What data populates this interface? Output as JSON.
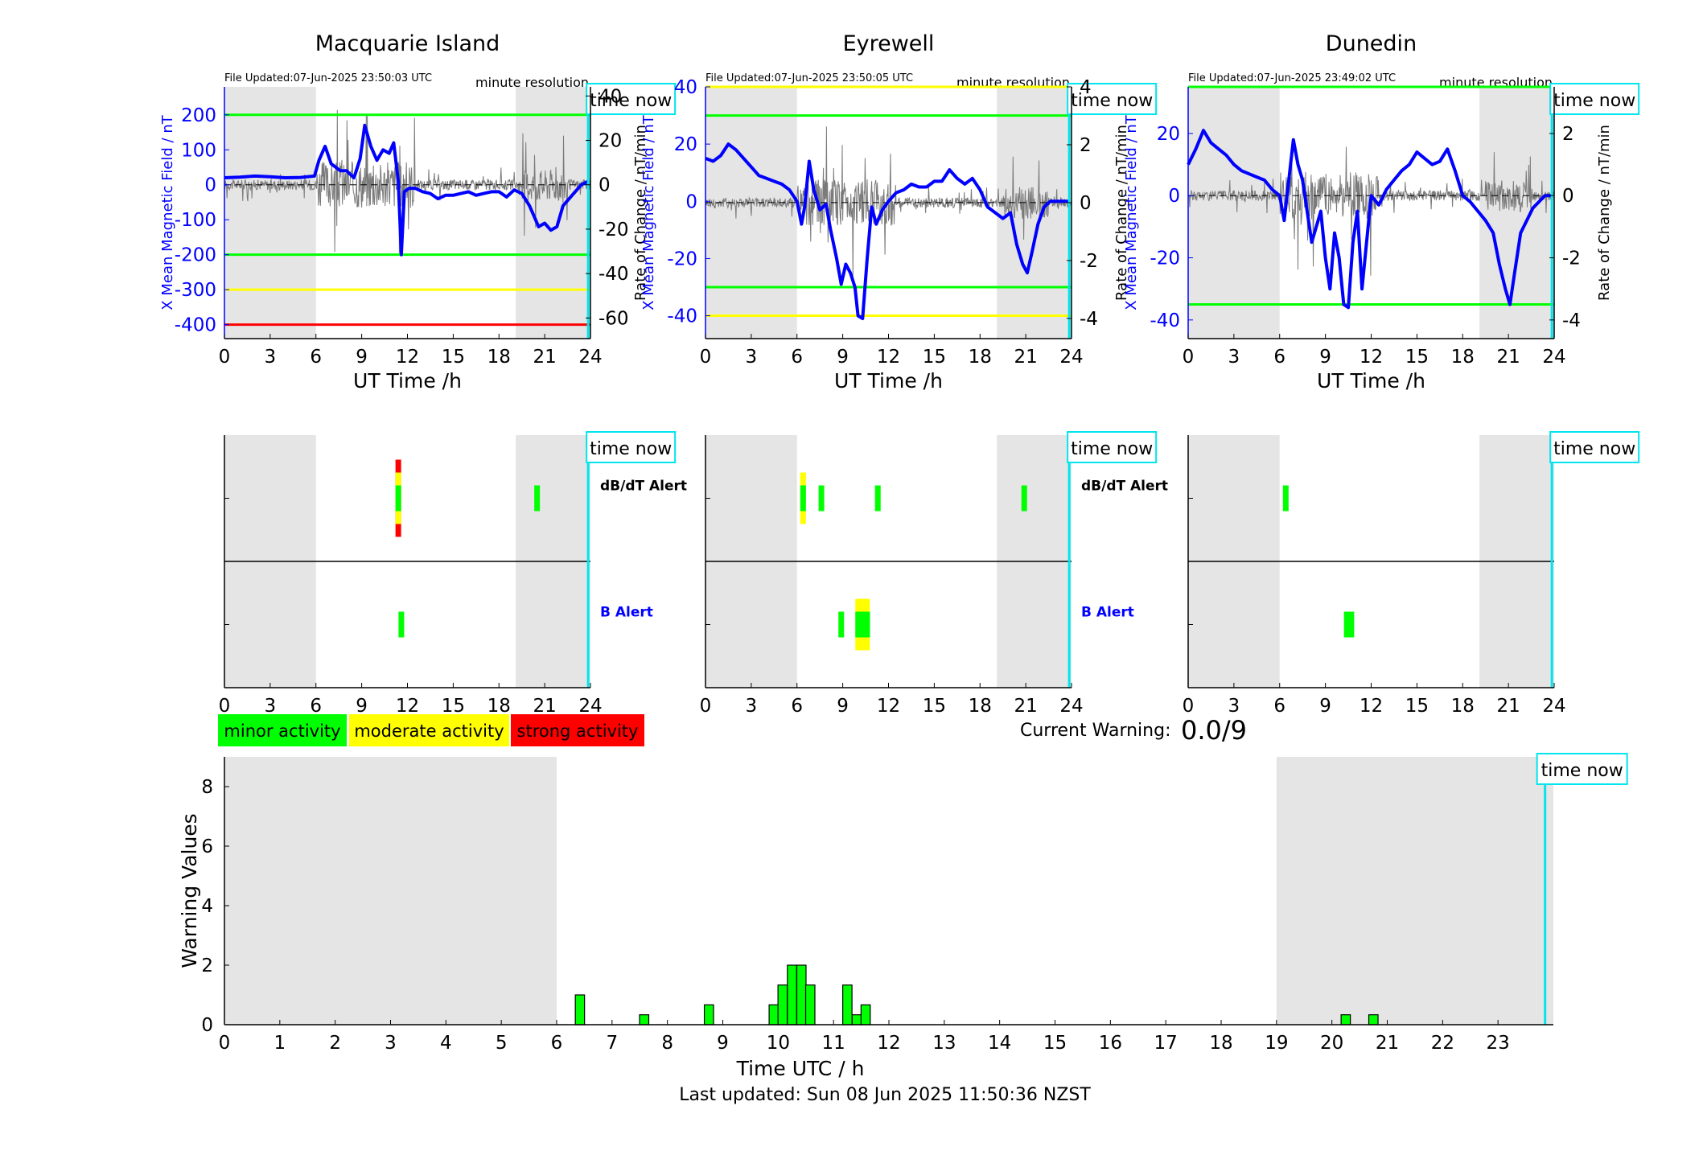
{
  "footer": {
    "last_updated": "Last updated: Sun 08 Jun 2025 11:50:36 NZST"
  },
  "legend": {
    "items": [
      {
        "label": "minor activity",
        "color": "#00ff00"
      },
      {
        "label": "moderate activity",
        "color": "#ffff00"
      },
      {
        "label": "strong activity",
        "color": "#ff0000"
      }
    ]
  },
  "current_warning": {
    "label": "Current Warning:",
    "value": "0.0/9"
  },
  "colors": {
    "field_line": "#0000ff",
    "time_now": "#00e5ee",
    "shade": "#e5e5e5",
    "threshold_green": "#00ff00",
    "threshold_yellow": "#ffff00",
    "threshold_red": "#ff0000"
  },
  "chart_data": [
    {
      "type": "line",
      "title": "Macquarie Island",
      "file_updated": "File Updated:07-Jun-2025 23:50:03 UTC",
      "resolution": "minute resolution",
      "time_now_label": "time now",
      "xlabel": "UT Time /h",
      "ylabel_left": "X Mean Magnetic Field / nT",
      "ylabel_right": "Rate of Change / nT/min",
      "xlim": [
        0,
        24
      ],
      "ylim": [
        -440,
        280
      ],
      "ylim_right": [
        -69.3,
        44.1
      ],
      "xticks": [
        0,
        3,
        6,
        9,
        12,
        15,
        18,
        21,
        24
      ],
      "yticks": [
        -400,
        -300,
        -200,
        -100,
        0,
        100,
        200
      ],
      "yticks_right": [
        -60,
        -40,
        -20,
        0,
        20,
        40
      ],
      "shaded_ranges": [
        [
          0,
          6
        ],
        [
          19.1,
          24
        ]
      ],
      "thresholds": [
        {
          "value": 200,
          "color": "#00ff00"
        },
        {
          "value": -200,
          "color": "#00ff00"
        },
        {
          "value": -300,
          "color": "#ffff00"
        },
        {
          "value": -400,
          "color": "#ff0000"
        }
      ],
      "time_now": 23.85,
      "series": [
        {
          "axis": "left",
          "x": [
            0,
            1,
            2,
            3,
            4,
            5,
            5.9,
            6.2,
            6.6,
            7,
            7.6,
            8,
            8.5,
            8.9,
            9.2,
            9.6,
            10,
            10.4,
            10.8,
            11.1,
            11.4,
            11.6,
            11.8,
            12.1,
            12.5,
            13,
            13.5,
            14,
            14.5,
            15,
            15.5,
            16,
            16.5,
            17,
            17.5,
            18,
            18.5,
            19,
            19.5,
            20,
            20.3,
            20.6,
            21,
            21.4,
            21.8,
            22.2,
            22.6,
            23,
            23.4,
            23.85
          ],
          "y": [
            20,
            22,
            25,
            23,
            20,
            21,
            25,
            70,
            110,
            60,
            40,
            40,
            20,
            75,
            170,
            110,
            70,
            100,
            90,
            120,
            10,
            -200,
            -20,
            -10,
            -10,
            -20,
            -25,
            -40,
            -30,
            -30,
            -25,
            -20,
            -30,
            -25,
            -20,
            -20,
            -35,
            -15,
            -25,
            -60,
            -90,
            -120,
            -110,
            -130,
            -120,
            -60,
            -40,
            -20,
            0,
            10
          ]
        }
      ]
    },
    {
      "type": "line",
      "title": "Eyrewell",
      "file_updated": "File Updated:07-Jun-2025 23:50:05 UTC",
      "resolution": "minute resolution",
      "time_now_label": "time now",
      "xlabel": "UT Time /h",
      "ylabel_left": "X Mean Magnetic Field / nT",
      "ylabel_right": "Rate of Change / nT/min",
      "xlim": [
        0,
        24
      ],
      "ylim": [
        -48,
        40
      ],
      "ylim_right": [
        -4.7,
        4.0
      ],
      "xticks": [
        0,
        3,
        6,
        9,
        12,
        15,
        18,
        21,
        24
      ],
      "yticks": [
        -40,
        -20,
        0,
        20,
        40
      ],
      "yticks_right": [
        -4,
        -2,
        0,
        2,
        4
      ],
      "shaded_ranges": [
        [
          0,
          6
        ],
        [
          19.1,
          24
        ]
      ],
      "thresholds": [
        {
          "value": 40,
          "color": "#ffff00"
        },
        {
          "value": 30,
          "color": "#00ff00"
        },
        {
          "value": -30,
          "color": "#00ff00"
        },
        {
          "value": -40,
          "color": "#ffff00"
        }
      ],
      "time_now": 23.85,
      "series": [
        {
          "axis": "left",
          "x": [
            0,
            0.5,
            1,
            1.5,
            2,
            2.5,
            3,
            3.5,
            4,
            4.5,
            5,
            5.5,
            6,
            6.3,
            6.5,
            6.8,
            7.1,
            7.5,
            7.9,
            8.2,
            8.6,
            8.9,
            9.2,
            9.5,
            9.8,
            10,
            10.3,
            10.6,
            10.9,
            11.2,
            11.6,
            12,
            12.5,
            13,
            13.5,
            14,
            14.5,
            15,
            15.5,
            16,
            16.5,
            17,
            17.5,
            18,
            18.5,
            19,
            19.5,
            20,
            20.4,
            20.8,
            21.1,
            21.4,
            21.8,
            22.2,
            22.6,
            23,
            23.4,
            23.85
          ],
          "y": [
            15,
            14,
            16,
            20,
            18,
            15,
            12,
            9,
            8,
            7,
            6,
            4,
            0,
            -8,
            -2,
            14,
            4,
            -3,
            -1,
            -10,
            -20,
            -29,
            -22,
            -25,
            -30,
            -40,
            -41,
            -20,
            -2,
            -8,
            -3,
            0,
            3,
            4,
            6,
            5,
            5,
            7,
            7,
            11,
            8,
            6,
            8,
            4,
            -2,
            -4,
            -6,
            -4,
            -15,
            -22,
            -25,
            -18,
            -8,
            -2,
            0,
            0,
            0,
            0
          ]
        },
        {
          "axis": "right",
          "x": [
            0,
            24
          ],
          "y": [
            0,
            0
          ]
        }
      ]
    },
    {
      "type": "line",
      "title": "Dunedin",
      "file_updated": "File Updated:07-Jun-2025 23:49:02 UTC",
      "resolution": "minute resolution",
      "time_now_label": "time now",
      "xlabel": "UT Time /h",
      "ylabel_left": "X Mean Magnetic Field / nT",
      "ylabel_right": "Rate of Change / nT/min",
      "xlim": [
        0,
        24
      ],
      "ylim": [
        -46,
        35
      ],
      "ylim_right": [
        -4.6,
        3.5
      ],
      "xticks": [
        0,
        3,
        6,
        9,
        12,
        15,
        18,
        21,
        24
      ],
      "yticks": [
        -40,
        -20,
        0,
        20
      ],
      "yticks_right": [
        -4,
        -2,
        0,
        2
      ],
      "shaded_ranges": [
        [
          0,
          6
        ],
        [
          19.1,
          24
        ]
      ],
      "thresholds": [
        {
          "value": 35,
          "color": "#00ff00"
        },
        {
          "value": -35,
          "color": "#00ff00"
        }
      ],
      "time_now": 23.85,
      "series": [
        {
          "axis": "left",
          "x": [
            0,
            0.5,
            1,
            1.5,
            2,
            2.5,
            3,
            3.5,
            4,
            4.5,
            5,
            5.5,
            6,
            6.3,
            6.6,
            6.9,
            7.2,
            7.5,
            7.8,
            8.1,
            8.4,
            8.7,
            9,
            9.3,
            9.6,
            9.9,
            10.2,
            10.5,
            10.8,
            11.1,
            11.4,
            11.7,
            12,
            12.5,
            13,
            13.5,
            14,
            14.5,
            15,
            15.5,
            16,
            16.5,
            17,
            17.5,
            18,
            18.5,
            19,
            19.5,
            20,
            20.4,
            20.8,
            21.1,
            21.4,
            21.8,
            22.2,
            22.6,
            23,
            23.4,
            23.85
          ],
          "y": [
            10,
            15,
            21,
            17,
            15,
            13,
            10,
            8,
            7,
            6,
            5,
            2,
            0,
            -8,
            5,
            18,
            10,
            5,
            -5,
            -15,
            -10,
            -5,
            -20,
            -30,
            -12,
            -20,
            -35,
            -36,
            -15,
            -5,
            -30,
            -15,
            0,
            -3,
            2,
            5,
            8,
            10,
            14,
            12,
            10,
            11,
            15,
            8,
            0,
            -2,
            -5,
            -8,
            -12,
            -22,
            -30,
            -35,
            -25,
            -12,
            -8,
            -4,
            -2,
            0,
            0
          ]
        }
      ]
    },
    {
      "type": "bar",
      "subtype": "alert_strip",
      "time_now_label": "time now",
      "rows": [
        "dB/dT Alert",
        "B Alert"
      ],
      "xlim": [
        0,
        24
      ],
      "xticks": [
        0,
        3,
        6,
        9,
        12,
        15,
        18,
        21,
        24
      ],
      "shaded_ranges": [
        [
          0,
          6
        ],
        [
          19.1,
          24
        ]
      ],
      "time_now": 23.85,
      "alerts": [
        {
          "row": 0,
          "t": 11.4,
          "level": 3
        },
        {
          "row": 0,
          "t": 20.5,
          "level": 1
        },
        {
          "row": 1,
          "t": 11.6,
          "level": 1
        }
      ]
    },
    {
      "type": "bar",
      "subtype": "alert_strip",
      "time_now_label": "time now",
      "rows": [
        "dB/dT Alert",
        "B Alert"
      ],
      "xlim": [
        0,
        24
      ],
      "xticks": [
        0,
        3,
        6,
        9,
        12,
        15,
        18,
        21,
        24
      ],
      "shaded_ranges": [
        [
          0,
          6
        ],
        [
          19.1,
          24
        ]
      ],
      "time_now": 23.85,
      "alerts": [
        {
          "row": 0,
          "t": 6.4,
          "level": 2
        },
        {
          "row": 0,
          "t": 7.6,
          "level": 1
        },
        {
          "row": 0,
          "t": 11.3,
          "level": 1
        },
        {
          "row": 0,
          "t": 20.9,
          "level": 1
        },
        {
          "row": 1,
          "t": 8.9,
          "level": 1
        },
        {
          "row": 1,
          "t": 10.3,
          "level": 2
        },
        {
          "row": 1,
          "t": 10.6,
          "level": 1
        }
      ]
    },
    {
      "type": "bar",
      "subtype": "alert_strip",
      "time_now_label": "time now",
      "rows": [
        "dB/dT Alert",
        "B Alert"
      ],
      "xlim": [
        0,
        24
      ],
      "xticks": [
        0,
        3,
        6,
        9,
        12,
        15,
        18,
        21,
        24
      ],
      "shaded_ranges": [
        [
          0,
          6
        ],
        [
          19.1,
          24
        ]
      ],
      "time_now": 23.85,
      "alerts": [
        {
          "row": 0,
          "t": 6.4,
          "level": 1
        },
        {
          "row": 1,
          "t": 10.4,
          "level": 1
        },
        {
          "row": 1,
          "t": 10.7,
          "level": 1
        }
      ]
    },
    {
      "type": "bar",
      "title": "",
      "xlabel": "Time UTC / h",
      "ylabel": "Warning Values",
      "time_now_label": "time now",
      "xlim": [
        0,
        24
      ],
      "ylim": [
        0,
        9
      ],
      "xticks": [
        0,
        1,
        2,
        3,
        4,
        5,
        6,
        7,
        8,
        9,
        10,
        11,
        12,
        13,
        14,
        15,
        16,
        17,
        18,
        19,
        20,
        21,
        22,
        23
      ],
      "yticks": [
        0,
        2,
        4,
        6,
        8
      ],
      "shaded_ranges": [
        [
          0,
          6
        ],
        [
          19,
          24
        ]
      ],
      "time_now": 23.85,
      "bar_width_hours": 0.1667,
      "x": [
        6.42,
        7.58,
        8.75,
        9.92,
        10.08,
        10.25,
        10.42,
        10.58,
        11.25,
        11.42,
        11.58,
        20.25,
        20.75
      ],
      "values": [
        1.0,
        0.333,
        0.667,
        0.667,
        1.333,
        2.0,
        2.0,
        1.333,
        1.333,
        0.333,
        0.667,
        0.333,
        0.333
      ]
    }
  ]
}
